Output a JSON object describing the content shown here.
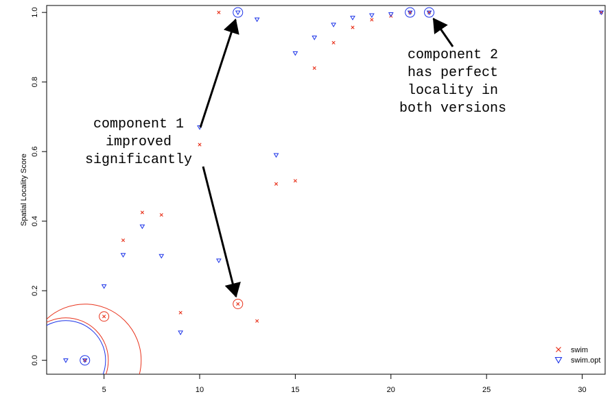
{
  "chart_data": {
    "type": "scatter",
    "title": "",
    "xlabel": "",
    "ylabel": "Spatial Locality Score",
    "xlim": [
      2,
      31.2
    ],
    "ylim": [
      -0.04,
      1.02
    ],
    "x_ticks": [
      5,
      10,
      15,
      20,
      25,
      30
    ],
    "y_ticks": [
      0.0,
      0.2,
      0.4,
      0.6,
      0.8,
      1.0
    ],
    "x_tick_labels": [
      "5",
      "10",
      "15",
      "20",
      "25",
      "30"
    ],
    "y_tick_labels": [
      "0.0",
      "0.2",
      "0.4",
      "0.6",
      "0.8",
      "1.0"
    ],
    "grid": false,
    "legend_position": "bottom-right",
    "series": [
      {
        "name": "swim",
        "marker": "cross",
        "color": "#e8311a",
        "points": [
          {
            "x": 4,
            "y": 0.0
          },
          {
            "x": 5,
            "y": 0.126
          },
          {
            "x": 6,
            "y": 0.345
          },
          {
            "x": 7,
            "y": 0.425
          },
          {
            "x": 8,
            "y": 0.418
          },
          {
            "x": 9,
            "y": 0.137
          },
          {
            "x": 10,
            "y": 0.62
          },
          {
            "x": 11,
            "y": 1.0
          },
          {
            "x": 12,
            "y": 0.162
          },
          {
            "x": 13,
            "y": 0.113
          },
          {
            "x": 14,
            "y": 0.507
          },
          {
            "x": 15,
            "y": 0.516
          },
          {
            "x": 16,
            "y": 0.84
          },
          {
            "x": 17,
            "y": 0.913
          },
          {
            "x": 18,
            "y": 0.957
          },
          {
            "x": 19,
            "y": 0.979
          },
          {
            "x": 20,
            "y": 0.99
          },
          {
            "x": 21,
            "y": 1.0
          },
          {
            "x": 22,
            "y": 1.0
          },
          {
            "x": 31,
            "y": 1.0
          }
        ]
      },
      {
        "name": "swim.opt",
        "marker": "triangle-down",
        "color": "#1a32e8",
        "points": [
          {
            "x": 3,
            "y": 0.0
          },
          {
            "x": 4,
            "y": 0.0
          },
          {
            "x": 5,
            "y": 0.213
          },
          {
            "x": 6,
            "y": 0.303
          },
          {
            "x": 7,
            "y": 0.385
          },
          {
            "x": 8,
            "y": 0.3
          },
          {
            "x": 9,
            "y": 0.08
          },
          {
            "x": 10,
            "y": 0.67
          },
          {
            "x": 11,
            "y": 0.287
          },
          {
            "x": 12,
            "y": 1.0
          },
          {
            "x": 13,
            "y": 0.98
          },
          {
            "x": 14,
            "y": 0.59
          },
          {
            "x": 15,
            "y": 0.883
          },
          {
            "x": 16,
            "y": 0.928
          },
          {
            "x": 17,
            "y": 0.965
          },
          {
            "x": 18,
            "y": 0.985
          },
          {
            "x": 19,
            "y": 0.992
          },
          {
            "x": 20,
            "y": 0.995
          },
          {
            "x": 21,
            "y": 1.0
          },
          {
            "x": 22,
            "y": 1.0
          },
          {
            "x": 31,
            "y": 1.0
          }
        ]
      }
    ],
    "highlight_circles": [
      {
        "x": 12,
        "y": 0.162,
        "color": "#e8311a",
        "size": "small"
      },
      {
        "x": 12,
        "y": 1.0,
        "color": "#1a32e8",
        "size": "small"
      },
      {
        "x": 22,
        "y": 1.0,
        "color": "#1a32e8",
        "size": "small"
      },
      {
        "x": 21,
        "y": 1.0,
        "color": "#1a32e8",
        "size": "small"
      },
      {
        "x": 5,
        "y": 0.126,
        "color": "#e8311a",
        "size": "small"
      },
      {
        "x": 4,
        "y": 0.0,
        "color": "#1a32e8",
        "size": "small"
      },
      {
        "x": 3,
        "y": 0.0,
        "color": "#1a32e8",
        "size": "large"
      },
      {
        "x": 3,
        "y": 0.0,
        "color": "#e8311a",
        "size": "large"
      },
      {
        "x": 4,
        "y": 0.0,
        "color": "#e8311a",
        "size": "large"
      }
    ],
    "annotations": [
      {
        "lines": [
          "component 1",
          "improved",
          "significantly"
        ],
        "arrows_to": [
          {
            "x": 12,
            "y": 1.0
          },
          {
            "x": 12,
            "y": 0.162
          }
        ]
      },
      {
        "lines": [
          "component 2",
          "has perfect",
          "locality in",
          "both versions"
        ],
        "arrows_to": [
          {
            "x": 22,
            "y": 1.0
          }
        ]
      }
    ]
  }
}
